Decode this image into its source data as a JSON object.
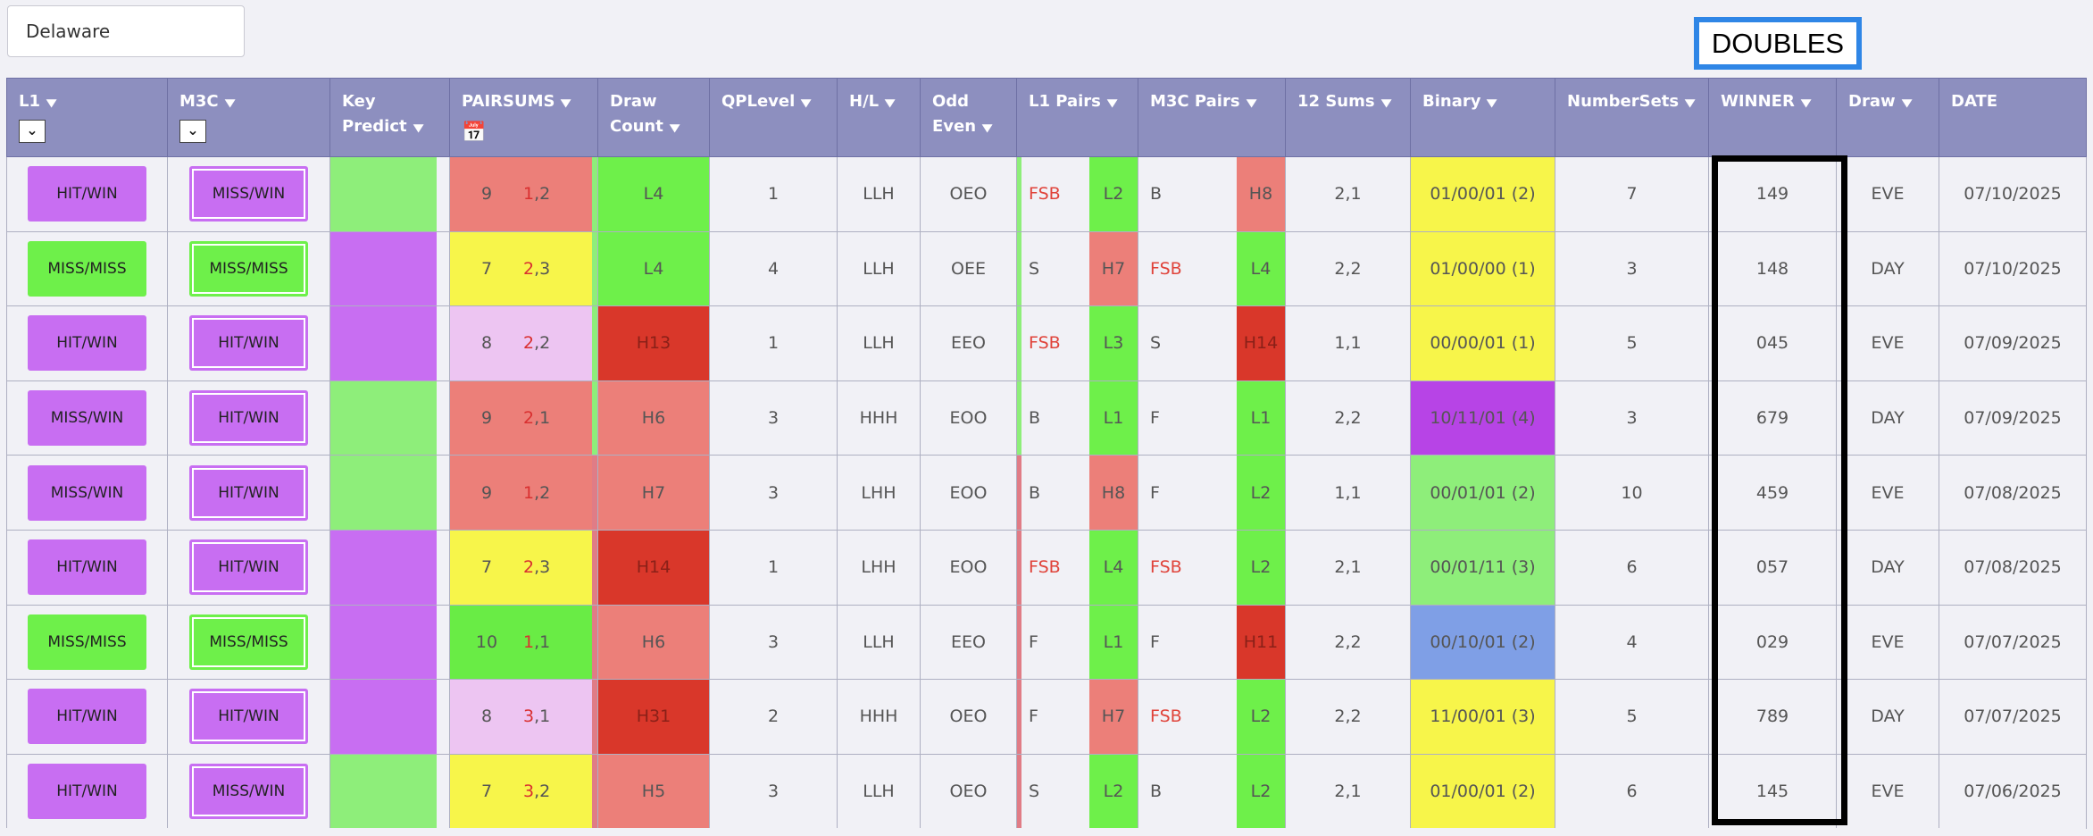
{
  "filters": {
    "state": "Delaware",
    "doubles_label": "DOUBLES"
  },
  "colors": {
    "header": "#8d8fbf",
    "purple": "#c86ef2",
    "green": "#6ef04a",
    "light_green": "#8eee7a",
    "salmon": "#ec7f79",
    "red": "#d9372a",
    "yellow": "#f7f54a",
    "pink": "#edc5f2",
    "blue": "#7f9fe6"
  },
  "columns": [
    {
      "label": "L1",
      "icon": "chevron-down-icon"
    },
    {
      "label": "M3C",
      "icon": "chevron-down-icon"
    },
    {
      "label": "Key Predict"
    },
    {
      "label": "PAIRSUMS",
      "icon": "calendar-icon"
    },
    {
      "label": "Draw Count"
    },
    {
      "label": "QPLevel"
    },
    {
      "label": "H/L"
    },
    {
      "label": "Odd Even"
    },
    {
      "label": "L1 Pairs"
    },
    {
      "label": "M3C Pairs"
    },
    {
      "label": "12 Sums"
    },
    {
      "label": "Binary"
    },
    {
      "label": "NumberSets"
    },
    {
      "label": "WINNER"
    },
    {
      "label": "Draw"
    },
    {
      "label": "DATE"
    }
  ],
  "rows": [
    {
      "l1": "HIT/WIN",
      "l1_color": "purple",
      "m3c": "MISS/WIN",
      "m3c_color": "purple",
      "kp": "green",
      "ps_a": "9",
      "ps_b1": "1",
      "ps_b2": ",2",
      "ps_color": "salmon",
      "ps_edge": "green",
      "dc": "L4",
      "dc_color": "green",
      "qp": "1",
      "hl": "LLH",
      "oe": "OEO",
      "l1p": "FSB",
      "l1p_red": true,
      "l1p_r": "L2",
      "l1p_rc": "green",
      "l1_stripe": "green",
      "m3p": "B",
      "m3p_red": false,
      "m3p_r": "H8",
      "m3p_rc": "salmon",
      "sums": "2,1",
      "bin": "01/00/01 (2)",
      "bin_color": "yellow",
      "ns": "7",
      "win": "149",
      "draw": "EVE",
      "date": "07/10/2025"
    },
    {
      "l1": "MISS/MISS",
      "l1_color": "green",
      "m3c": "MISS/MISS",
      "m3c_color": "green",
      "kp": "purple",
      "ps_a": "7",
      "ps_b1": "2",
      "ps_b2": ",3",
      "ps_color": "yellow",
      "ps_edge": "green",
      "dc": "L4",
      "dc_color": "green",
      "qp": "4",
      "hl": "LLH",
      "oe": "OEE",
      "l1p": "S",
      "l1p_red": false,
      "l1p_r": "H7",
      "l1p_rc": "salmon",
      "l1_stripe": "green",
      "m3p": "FSB",
      "m3p_red": true,
      "m3p_r": "L4",
      "m3p_rc": "green",
      "sums": "2,2",
      "bin": "01/00/00 (1)",
      "bin_color": "yellow",
      "ns": "3",
      "win": "148",
      "draw": "DAY",
      "date": "07/10/2025"
    },
    {
      "l1": "HIT/WIN",
      "l1_color": "purple",
      "m3c": "HIT/WIN",
      "m3c_color": "purple",
      "kp": "purple",
      "ps_a": "8",
      "ps_b1": "2",
      "ps_b2": ",2",
      "ps_color": "pink",
      "ps_edge": "green",
      "dc": "H13",
      "dc_color": "red",
      "qp": "1",
      "hl": "LLH",
      "oe": "EEO",
      "l1p": "FSB",
      "l1p_red": true,
      "l1p_r": "L3",
      "l1p_rc": "green",
      "l1_stripe": "green",
      "m3p": "S",
      "m3p_red": false,
      "m3p_r": "H14",
      "m3p_rc": "red",
      "sums": "1,1",
      "bin": "00/00/01 (1)",
      "bin_color": "yellow",
      "ns": "5",
      "win": "045",
      "draw": "EVE",
      "date": "07/09/2025"
    },
    {
      "l1": "MISS/WIN",
      "l1_color": "purple",
      "m3c": "HIT/WIN",
      "m3c_color": "purple",
      "kp": "green",
      "ps_a": "9",
      "ps_b1": "2",
      "ps_b2": ",1",
      "ps_color": "salmon",
      "ps_edge": "green",
      "dc": "H6",
      "dc_color": "salmon",
      "qp": "3",
      "hl": "HHH",
      "oe": "EOO",
      "l1p": "B",
      "l1p_red": false,
      "l1p_r": "L1",
      "l1p_rc": "green",
      "l1_stripe": "green",
      "m3p": "F",
      "m3p_red": false,
      "m3p_r": "L1",
      "m3p_rc": "green",
      "sums": "2,2",
      "bin": "10/11/01 (4)",
      "bin_color": "violet",
      "ns": "3",
      "win": "679",
      "draw": "DAY",
      "date": "07/09/2025"
    },
    {
      "l1": "MISS/WIN",
      "l1_color": "purple",
      "m3c": "HIT/WIN",
      "m3c_color": "purple",
      "kp": "green",
      "ps_a": "9",
      "ps_b1": "1",
      "ps_b2": ",2",
      "ps_color": "salmon",
      "ps_edge": "salmon",
      "dc": "H7",
      "dc_color": "salmon",
      "qp": "3",
      "hl": "LHH",
      "oe": "EOO",
      "l1p": "B",
      "l1p_red": false,
      "l1p_r": "H8",
      "l1p_rc": "salmon",
      "l1_stripe": "salmon",
      "m3p": "F",
      "m3p_red": false,
      "m3p_r": "L2",
      "m3p_rc": "green",
      "sums": "1,1",
      "bin": "00/01/01 (2)",
      "bin_color": "lgreen",
      "ns": "10",
      "win": "459",
      "draw": "EVE",
      "date": "07/08/2025"
    },
    {
      "l1": "HIT/WIN",
      "l1_color": "purple",
      "m3c": "HIT/WIN",
      "m3c_color": "purple",
      "kp": "purple",
      "ps_a": "7",
      "ps_b1": "2",
      "ps_b2": ",3",
      "ps_color": "yellow",
      "ps_edge": "salmon",
      "dc": "H14",
      "dc_color": "red",
      "qp": "1",
      "hl": "LHH",
      "oe": "EOO",
      "l1p": "FSB",
      "l1p_red": true,
      "l1p_r": "L4",
      "l1p_rc": "green",
      "l1_stripe": "salmon",
      "m3p": "FSB",
      "m3p_red": true,
      "m3p_r": "L2",
      "m3p_rc": "green",
      "sums": "2,1",
      "bin": "00/01/11 (3)",
      "bin_color": "lgreen",
      "ns": "6",
      "win": "057",
      "draw": "DAY",
      "date": "07/08/2025"
    },
    {
      "l1": "MISS/MISS",
      "l1_color": "green",
      "m3c": "MISS/MISS",
      "m3c_color": "green",
      "kp": "purple",
      "ps_a": "10",
      "ps_b1": "1",
      "ps_b2": ",1",
      "ps_color": "bgreen",
      "ps_edge": "salmon",
      "dc": "H6",
      "dc_color": "salmon",
      "qp": "3",
      "hl": "LLH",
      "oe": "EEO",
      "l1p": "F",
      "l1p_red": false,
      "l1p_r": "L1",
      "l1p_rc": "green",
      "l1_stripe": "salmon",
      "m3p": "F",
      "m3p_red": false,
      "m3p_r": "H11",
      "m3p_rc": "red",
      "sums": "2,2",
      "bin": "00/10/01 (2)",
      "bin_color": "blue",
      "ns": "4",
      "win": "029",
      "draw": "EVE",
      "date": "07/07/2025"
    },
    {
      "l1": "HIT/WIN",
      "l1_color": "purple",
      "m3c": "HIT/WIN",
      "m3c_color": "purple",
      "kp": "purple",
      "ps_a": "8",
      "ps_b1": "3",
      "ps_b2": ",1",
      "ps_color": "pink",
      "ps_edge": "salmon",
      "dc": "H31",
      "dc_color": "red",
      "qp": "2",
      "hl": "HHH",
      "oe": "OEO",
      "l1p": "F",
      "l1p_red": false,
      "l1p_r": "H7",
      "l1p_rc": "salmon",
      "l1_stripe": "salmon",
      "m3p": "FSB",
      "m3p_red": true,
      "m3p_r": "L2",
      "m3p_rc": "green",
      "sums": "2,2",
      "bin": "11/00/01 (3)",
      "bin_color": "yellow",
      "ns": "5",
      "win": "789",
      "draw": "DAY",
      "date": "07/07/2025"
    },
    {
      "l1": "HIT/WIN",
      "l1_color": "purple",
      "m3c": "MISS/WIN",
      "m3c_color": "purple",
      "kp": "green",
      "ps_a": "7",
      "ps_b1": "3",
      "ps_b2": ",2",
      "ps_color": "yellow",
      "ps_edge": "salmon",
      "dc": "H5",
      "dc_color": "salmon",
      "qp": "3",
      "hl": "LLH",
      "oe": "OEO",
      "l1p": "S",
      "l1p_red": false,
      "l1p_r": "L2",
      "l1p_rc": "green",
      "l1_stripe": "salmon",
      "m3p": "B",
      "m3p_red": false,
      "m3p_r": "L2",
      "m3p_rc": "green",
      "sums": "2,1",
      "bin": "01/00/01 (2)",
      "bin_color": "yellow",
      "ns": "6",
      "win": "145",
      "draw": "EVE",
      "date": "07/06/2025"
    }
  ]
}
